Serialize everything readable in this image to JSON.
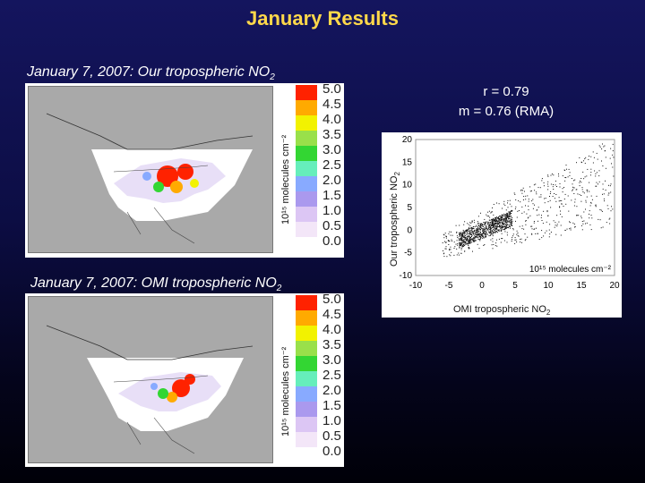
{
  "slide": {
    "title": "January Results",
    "caption_top": "January 7, 2007: Our tropospheric NO",
    "caption_top_sub": "2",
    "caption_bottom": "January 7, 2007: OMI tropospheric NO",
    "caption_bottom_sub": "2"
  },
  "colorbar": {
    "unit_label": "10¹⁵ molecules cm⁻²",
    "ticks": [
      "5.0",
      "4.5",
      "4.0",
      "3.5",
      "3.0",
      "2.5",
      "2.0",
      "1.5",
      "1.0",
      "0.5",
      "0.0"
    ],
    "colors": [
      "#ff2200",
      "#ffaa00",
      "#f2f200",
      "#99e04a",
      "#33d633",
      "#66eebb",
      "#88aaff",
      "#aa99ee",
      "#dcc6f4",
      "#f3e6f8"
    ]
  },
  "scatter": {
    "stats_r": "r = 0.79",
    "stats_m": "m = 0.76 (RMA)",
    "ylabel": "Our tropospheric NO",
    "ylabel_sub": "2",
    "xlabel": "OMI tropospheric NO",
    "xlabel_sub": "2",
    "unit_label": "10¹⁵ molecules cm⁻²",
    "x_ticks": [
      "-10",
      "-5",
      "0",
      "5",
      "10",
      "15",
      "20"
    ],
    "y_ticks": [
      "20",
      "15",
      "10",
      "5",
      "0",
      "-5",
      "-10"
    ]
  },
  "chart_data": {
    "type": "scatter",
    "title": "",
    "xlabel": "OMI tropospheric NO2",
    "ylabel": "Our tropospheric NO2",
    "xlim": [
      -10,
      20
    ],
    "ylim": [
      -10,
      20
    ],
    "grid": false,
    "annotations": [
      "r = 0.79",
      "m = 0.76 (RMA)",
      "10¹⁵ molecules cm⁻²"
    ],
    "description": "Dense cluster of points centered near (0, 0) extending along a positive trend; sparse scatter out to x≈20, y≈20"
  }
}
